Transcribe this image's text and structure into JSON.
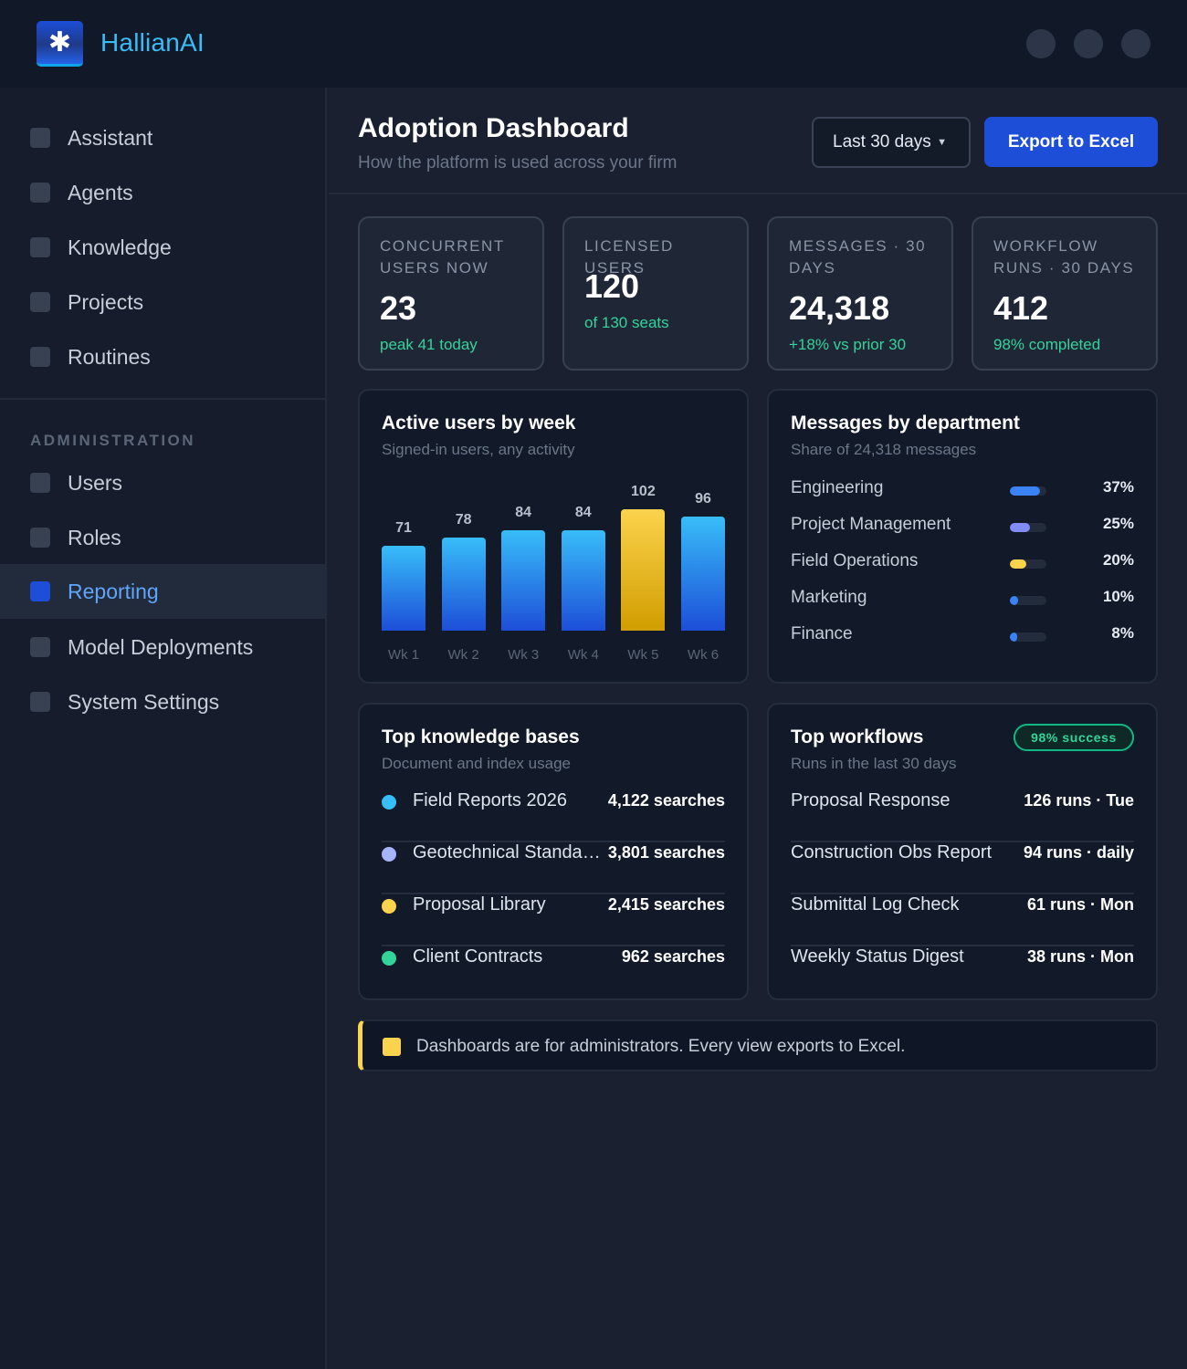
{
  "app": {
    "brand": "HallianAI",
    "logo_glyph": "✱",
    "accent": "#1d4ed8",
    "brand_color": "#38bdf8"
  },
  "sidebar": {
    "items": [
      {
        "label": "Assistant",
        "icon": "assistant-icon"
      },
      {
        "label": "Agents",
        "icon": "agents-icon"
      },
      {
        "label": "Knowledge",
        "icon": "knowledge-icon"
      },
      {
        "label": "Projects",
        "icon": "projects-icon"
      },
      {
        "label": "Routines",
        "icon": "routines-icon"
      }
    ],
    "section_label": "ADMINISTRATION",
    "admin_items": [
      {
        "label": "Users",
        "icon": "users-icon"
      },
      {
        "label": "Roles",
        "icon": "roles-icon"
      },
      {
        "label": "Reporting",
        "icon": "reporting-icon",
        "active": true
      },
      {
        "label": "Model Deployments",
        "icon": "model-deployments-icon"
      },
      {
        "label": "System Settings",
        "icon": "system-settings-icon"
      }
    ]
  },
  "header": {
    "title": "Adoption Dashboard",
    "subtitle": "How the platform is used across your firm",
    "range_value": "Last 30 days",
    "export_label": "Export to Excel"
  },
  "kpis": [
    {
      "label": "Concurrent users now",
      "value": "23",
      "sub": "peak 41 today"
    },
    {
      "label": "Licensed users",
      "value": "120",
      "sub": "of 130 seats"
    },
    {
      "label": "Messages · 30 days",
      "value": "24,318",
      "sub": "+18% vs prior 30"
    },
    {
      "label": "Workflow runs · 30 days",
      "value": "412",
      "sub": "98% completed"
    }
  ],
  "active_users": {
    "title": "Active users by week",
    "subtitle": "Signed-in users, any activity"
  },
  "chart_data": {
    "type": "bar",
    "categories": [
      "Wk 1",
      "Wk 2",
      "Wk 3",
      "Wk 4",
      "Wk 5",
      "Wk 6"
    ],
    "values": [
      71,
      78,
      84,
      84,
      102,
      96
    ],
    "highlight_index": 4,
    "colors": {
      "bar": "#2563eb",
      "highlight": "#fcd34d"
    }
  },
  "departments": {
    "title": "Messages by department",
    "subtitle": "Share of 24,318 messages",
    "rows": [
      {
        "name": "Engineering",
        "pct_label": "37%",
        "share": 0.37,
        "color": "#3b82f6"
      },
      {
        "name": "Project Management",
        "pct_label": "25%",
        "share": 0.25,
        "color": "#818cf8"
      },
      {
        "name": "Field Operations",
        "pct_label": "20%",
        "share": 0.2,
        "color": "#fcd34d"
      },
      {
        "name": "Marketing",
        "pct_label": "10%",
        "share": 0.1,
        "color": "#3b82f6"
      },
      {
        "name": "Finance",
        "pct_label": "8%",
        "share": 0.08,
        "color": "#3b82f6"
      }
    ]
  },
  "knowledge_bases": {
    "title": "Top knowledge bases",
    "subtitle": "Document and index usage",
    "rows": [
      {
        "name": "Field Reports 2026",
        "value": "4,122 searches",
        "color": "#38bdf8"
      },
      {
        "name": "Geotechnical Standards",
        "value": "3,801 searches",
        "color": "#a5b4fc"
      },
      {
        "name": "Proposal Library",
        "value": "2,415 searches",
        "color": "#fcd34d"
      },
      {
        "name": "Client Contracts",
        "value": "962 searches",
        "color": "#34d399"
      }
    ]
  },
  "workflows": {
    "title": "Top workflows",
    "subtitle": "Runs in the last 30 days",
    "badge": "98% success",
    "rows": [
      {
        "name": "Proposal Response",
        "value": "126 runs · Tue"
      },
      {
        "name": "Construction Obs Report",
        "value": "94 runs · daily"
      },
      {
        "name": "Submittal Log Check",
        "value": "61 runs · Mon"
      },
      {
        "name": "Weekly Status Digest",
        "value": "38 runs · Mon"
      }
    ]
  },
  "notice": {
    "text": "Dashboards are for administrators. Every view exports to Excel.",
    "icon": "info-icon",
    "color": "#fcd34d"
  }
}
